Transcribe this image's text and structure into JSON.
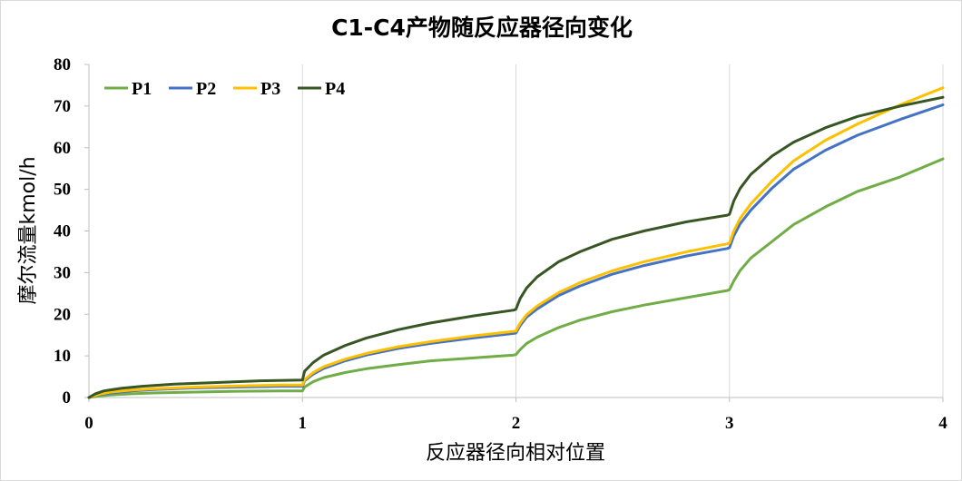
{
  "chart_data": {
    "type": "line",
    "title": "C1-C4产物随反应器径向变化",
    "xlabel": "反应器径向相对位置",
    "ylabel": "摩尔流量kmol/h",
    "xlim": [
      0,
      4
    ],
    "ylim": [
      0,
      80
    ],
    "x_ticks": [
      "0",
      "1",
      "2",
      "3",
      "4"
    ],
    "y_ticks": [
      "0",
      "10",
      "20",
      "30",
      "40",
      "50",
      "60",
      "70",
      "80"
    ],
    "grid": "vertical",
    "legend": "top-left",
    "series": [
      {
        "name": "P1",
        "color": "#70ad47",
        "points": [
          [
            0,
            0
          ],
          [
            0.05,
            0.4
          ],
          [
            0.1,
            0.6
          ],
          [
            0.2,
            0.9
          ],
          [
            0.3,
            1.1
          ],
          [
            0.5,
            1.3
          ],
          [
            0.7,
            1.5
          ],
          [
            0.9,
            1.6
          ],
          [
            1.0,
            1.6
          ],
          [
            1.01,
            2.5
          ],
          [
            1.05,
            3.8
          ],
          [
            1.1,
            4.8
          ],
          [
            1.2,
            6.0
          ],
          [
            1.3,
            6.9
          ],
          [
            1.45,
            7.9
          ],
          [
            1.6,
            8.8
          ],
          [
            1.8,
            9.5
          ],
          [
            1.99,
            10.2
          ],
          [
            2.0,
            10.3
          ],
          [
            2.02,
            11.5
          ],
          [
            2.05,
            13.0
          ],
          [
            2.1,
            14.5
          ],
          [
            2.2,
            16.8
          ],
          [
            2.3,
            18.6
          ],
          [
            2.45,
            20.6
          ],
          [
            2.6,
            22.2
          ],
          [
            2.8,
            24.0
          ],
          [
            2.99,
            25.7
          ],
          [
            3.0,
            25.9
          ],
          [
            3.02,
            28.0
          ],
          [
            3.05,
            30.5
          ],
          [
            3.1,
            33.5
          ],
          [
            3.2,
            37.5
          ],
          [
            3.3,
            41.5
          ],
          [
            3.45,
            45.8
          ],
          [
            3.6,
            49.5
          ],
          [
            3.8,
            53.0
          ],
          [
            4.0,
            57.3
          ]
        ]
      },
      {
        "name": "P2",
        "color": "#4472c4",
        "points": [
          [
            0,
            0
          ],
          [
            0.05,
            0.7
          ],
          [
            0.1,
            1.1
          ],
          [
            0.2,
            1.6
          ],
          [
            0.3,
            1.9
          ],
          [
            0.5,
            2.3
          ],
          [
            0.7,
            2.5
          ],
          [
            0.9,
            2.7
          ],
          [
            1.0,
            2.7
          ],
          [
            1.01,
            4.0
          ],
          [
            1.05,
            5.6
          ],
          [
            1.1,
            7.0
          ],
          [
            1.2,
            8.8
          ],
          [
            1.3,
            10.2
          ],
          [
            1.45,
            11.8
          ],
          [
            1.6,
            13.0
          ],
          [
            1.8,
            14.3
          ],
          [
            1.99,
            15.4
          ],
          [
            2.0,
            15.5
          ],
          [
            2.02,
            17.3
          ],
          [
            2.05,
            19.3
          ],
          [
            2.1,
            21.3
          ],
          [
            2.2,
            24.5
          ],
          [
            2.3,
            26.8
          ],
          [
            2.45,
            29.6
          ],
          [
            2.6,
            31.7
          ],
          [
            2.8,
            34.0
          ],
          [
            2.99,
            35.8
          ],
          [
            3.0,
            36.0
          ],
          [
            3.02,
            38.8
          ],
          [
            3.05,
            41.7
          ],
          [
            3.1,
            45.0
          ],
          [
            3.2,
            50.3
          ],
          [
            3.3,
            54.8
          ],
          [
            3.45,
            59.4
          ],
          [
            3.6,
            63.0
          ],
          [
            3.8,
            66.8
          ],
          [
            4.0,
            70.3
          ]
        ]
      },
      {
        "name": "P3",
        "color": "#ffc000",
        "points": [
          [
            0,
            0
          ],
          [
            0.05,
            0.8
          ],
          [
            0.1,
            1.3
          ],
          [
            0.2,
            1.8
          ],
          [
            0.3,
            2.1
          ],
          [
            0.5,
            2.5
          ],
          [
            0.7,
            2.8
          ],
          [
            0.9,
            3.0
          ],
          [
            1.0,
            3.0
          ],
          [
            1.01,
            4.3
          ],
          [
            1.05,
            6.0
          ],
          [
            1.1,
            7.4
          ],
          [
            1.2,
            9.2
          ],
          [
            1.3,
            10.6
          ],
          [
            1.45,
            12.2
          ],
          [
            1.6,
            13.4
          ],
          [
            1.8,
            14.8
          ],
          [
            1.99,
            15.9
          ],
          [
            2.0,
            16.0
          ],
          [
            2.02,
            17.9
          ],
          [
            2.05,
            19.9
          ],
          [
            2.1,
            22.0
          ],
          [
            2.2,
            25.2
          ],
          [
            2.3,
            27.6
          ],
          [
            2.45,
            30.4
          ],
          [
            2.6,
            32.6
          ],
          [
            2.8,
            35.0
          ],
          [
            2.99,
            36.9
          ],
          [
            3.0,
            37.1
          ],
          [
            3.02,
            40.0
          ],
          [
            3.05,
            43.0
          ],
          [
            3.1,
            46.5
          ],
          [
            3.2,
            52.0
          ],
          [
            3.3,
            56.8
          ],
          [
            3.45,
            61.8
          ],
          [
            3.6,
            65.7
          ],
          [
            3.8,
            70.3
          ],
          [
            4.0,
            74.4
          ]
        ]
      },
      {
        "name": "P4",
        "color": "#375623",
        "points": [
          [
            0,
            0
          ],
          [
            0.03,
            0.9
          ],
          [
            0.07,
            1.6
          ],
          [
            0.15,
            2.2
          ],
          [
            0.25,
            2.7
          ],
          [
            0.4,
            3.2
          ],
          [
            0.6,
            3.6
          ],
          [
            0.8,
            4.0
          ],
          [
            1.0,
            4.2
          ],
          [
            1.01,
            6.3
          ],
          [
            1.05,
            8.4
          ],
          [
            1.1,
            10.2
          ],
          [
            1.2,
            12.5
          ],
          [
            1.3,
            14.3
          ],
          [
            1.45,
            16.3
          ],
          [
            1.6,
            17.9
          ],
          [
            1.8,
            19.6
          ],
          [
            1.99,
            21.0
          ],
          [
            2.0,
            21.2
          ],
          [
            2.02,
            23.8
          ],
          [
            2.05,
            26.3
          ],
          [
            2.1,
            29.0
          ],
          [
            2.2,
            32.6
          ],
          [
            2.3,
            35.0
          ],
          [
            2.45,
            38.0
          ],
          [
            2.6,
            40.0
          ],
          [
            2.8,
            42.2
          ],
          [
            2.99,
            43.8
          ],
          [
            3.0,
            44.0
          ],
          [
            3.02,
            47.2
          ],
          [
            3.05,
            50.2
          ],
          [
            3.1,
            53.6
          ],
          [
            3.2,
            58.0
          ],
          [
            3.3,
            61.3
          ],
          [
            3.45,
            64.8
          ],
          [
            3.6,
            67.5
          ],
          [
            3.8,
            70.0
          ],
          [
            4.0,
            72.1
          ]
        ]
      }
    ]
  }
}
